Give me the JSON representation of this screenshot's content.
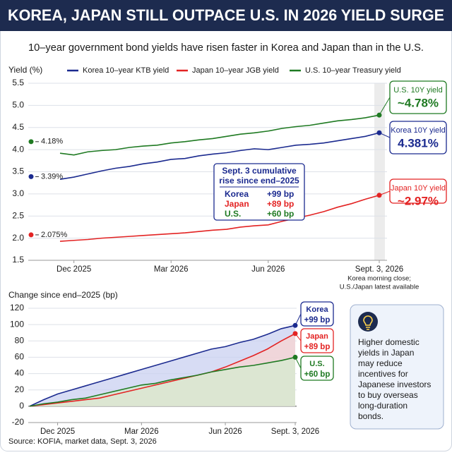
{
  "header": {
    "title": "KOREA, JAPAN STILL OUTPACE U.S. IN 2026 YIELD SURGE",
    "subtitle": "10–year government bond yields have risen faster in Korea and Japan than in the U.S."
  },
  "chart_data": [
    {
      "type": "line",
      "y_label": "Yield (%)",
      "categories": [
        null,
        "Dec 2025",
        null,
        null,
        null,
        null,
        null,
        null,
        "Mar 2026",
        null,
        null,
        null,
        null,
        null,
        null,
        "Jun 2026",
        null,
        null,
        null,
        null,
        null,
        null,
        null,
        "Sept. 3, 2026"
      ],
      "series": [
        {
          "name": "Korea 10–year KTB yield",
          "color": "#1b2a8f",
          "values": [
            3.33,
            3.38,
            3.45,
            3.52,
            3.58,
            3.62,
            3.68,
            3.72,
            3.78,
            3.8,
            3.86,
            3.9,
            3.93,
            3.98,
            4.02,
            4.0,
            4.05,
            4.1,
            4.12,
            4.15,
            4.2,
            4.25,
            4.3,
            4.381
          ],
          "start": {
            "value": 3.39,
            "label": "3.39%"
          },
          "callout": {
            "title": "Korea 10Y yield",
            "label": "4.381%"
          }
        },
        {
          "name": "Japan 10–year JGB yield",
          "color": "#e32323",
          "values": [
            1.93,
            1.95,
            1.97,
            2.0,
            2.02,
            2.04,
            2.06,
            2.08,
            2.1,
            2.12,
            2.15,
            2.18,
            2.2,
            2.25,
            2.28,
            2.3,
            2.38,
            2.45,
            2.52,
            2.6,
            2.7,
            2.78,
            2.88,
            2.97
          ],
          "start": {
            "value": 2.075,
            "label": "2.075%"
          },
          "callout": {
            "title": "Japan 10Y yield",
            "label": "~2.97%"
          }
        },
        {
          "name": "U.S. 10–year Treasury yield",
          "color": "#1f7a22",
          "values": [
            3.92,
            3.88,
            3.95,
            3.98,
            4.0,
            4.05,
            4.08,
            4.1,
            4.15,
            4.18,
            4.22,
            4.25,
            4.3,
            4.35,
            4.38,
            4.42,
            4.48,
            4.52,
            4.55,
            4.6,
            4.65,
            4.68,
            4.72,
            4.78
          ],
          "start": {
            "value": 4.18,
            "label": "4.18%"
          },
          "callout": {
            "title": "U.S. 10Y yield",
            "label": "~4.78%"
          }
        }
      ],
      "ylim": [
        1.5,
        5.5
      ],
      "yticks": [
        1.5,
        {
          "value": 2,
          "label": "2.0"
        },
        2.5,
        {
          "value": 3,
          "label": "3.0"
        },
        3.5,
        {
          "value": 4,
          "label": "4.0"
        },
        4.5,
        {
          "value": 5,
          "label": "5.0"
        },
        5.5
      ],
      "grid": true,
      "x_note": [
        "Korea morning close;",
        "U.S./Japan latest available"
      ],
      "summary": {
        "title": [
          "Sept. 3 cumulative",
          "rise since end–2025"
        ],
        "rows": [
          {
            "name": "Korea",
            "label": "+99 bp"
          },
          {
            "name": "Japan",
            "label": "+89 bp"
          },
          {
            "name": "U.S.",
            "label": "+60 bp"
          }
        ]
      }
    },
    {
      "type": "area",
      "y_label": "Change since end–2025 (bp)",
      "categories": [
        null,
        null,
        "Dec 2025",
        null,
        null,
        null,
        null,
        null,
        "Mar 2026",
        null,
        null,
        null,
        null,
        null,
        "Jun 2026",
        null,
        null,
        null,
        null,
        "Sept. 3, 2026"
      ],
      "series": [
        {
          "name": "Korea",
          "color": "#1b2a8f",
          "fill": "#c9d0f0",
          "values": [
            0,
            8,
            15,
            20,
            25,
            30,
            35,
            40,
            45,
            50,
            55,
            60,
            65,
            70,
            73,
            78,
            82,
            88,
            95,
            99
          ],
          "callout": {
            "label": "+99 bp"
          }
        },
        {
          "name": "Japan",
          "color": "#e32323",
          "fill": "#f8d4d2",
          "values": [
            0,
            2,
            4,
            6,
            8,
            10,
            14,
            18,
            22,
            26,
            30,
            34,
            38,
            42,
            48,
            55,
            62,
            70,
            80,
            89
          ],
          "callout": {
            "label": "+89 bp"
          }
        },
        {
          "name": "U.S.",
          "color": "#1f7a22",
          "fill": "#d6ebcf",
          "values": [
            0,
            3,
            5,
            8,
            10,
            14,
            18,
            22,
            26,
            28,
            32,
            35,
            38,
            42,
            45,
            48,
            50,
            53,
            56,
            60
          ],
          "callout": {
            "label": "+60 bp"
          }
        }
      ],
      "ylim": [
        -20,
        120
      ],
      "yticks": [
        -20,
        0,
        20,
        40,
        60,
        80,
        100,
        120
      ],
      "grid": true
    }
  ],
  "info_box": {
    "lines": [
      "Higher domestic",
      "yields in Japan",
      "may reduce",
      "incentives for",
      "Japanese investors",
      "to buy overseas",
      "long-duration",
      "bonds."
    ]
  },
  "footer": {
    "source": "Source: KOFIA, market data, Sept. 3, 2026"
  }
}
